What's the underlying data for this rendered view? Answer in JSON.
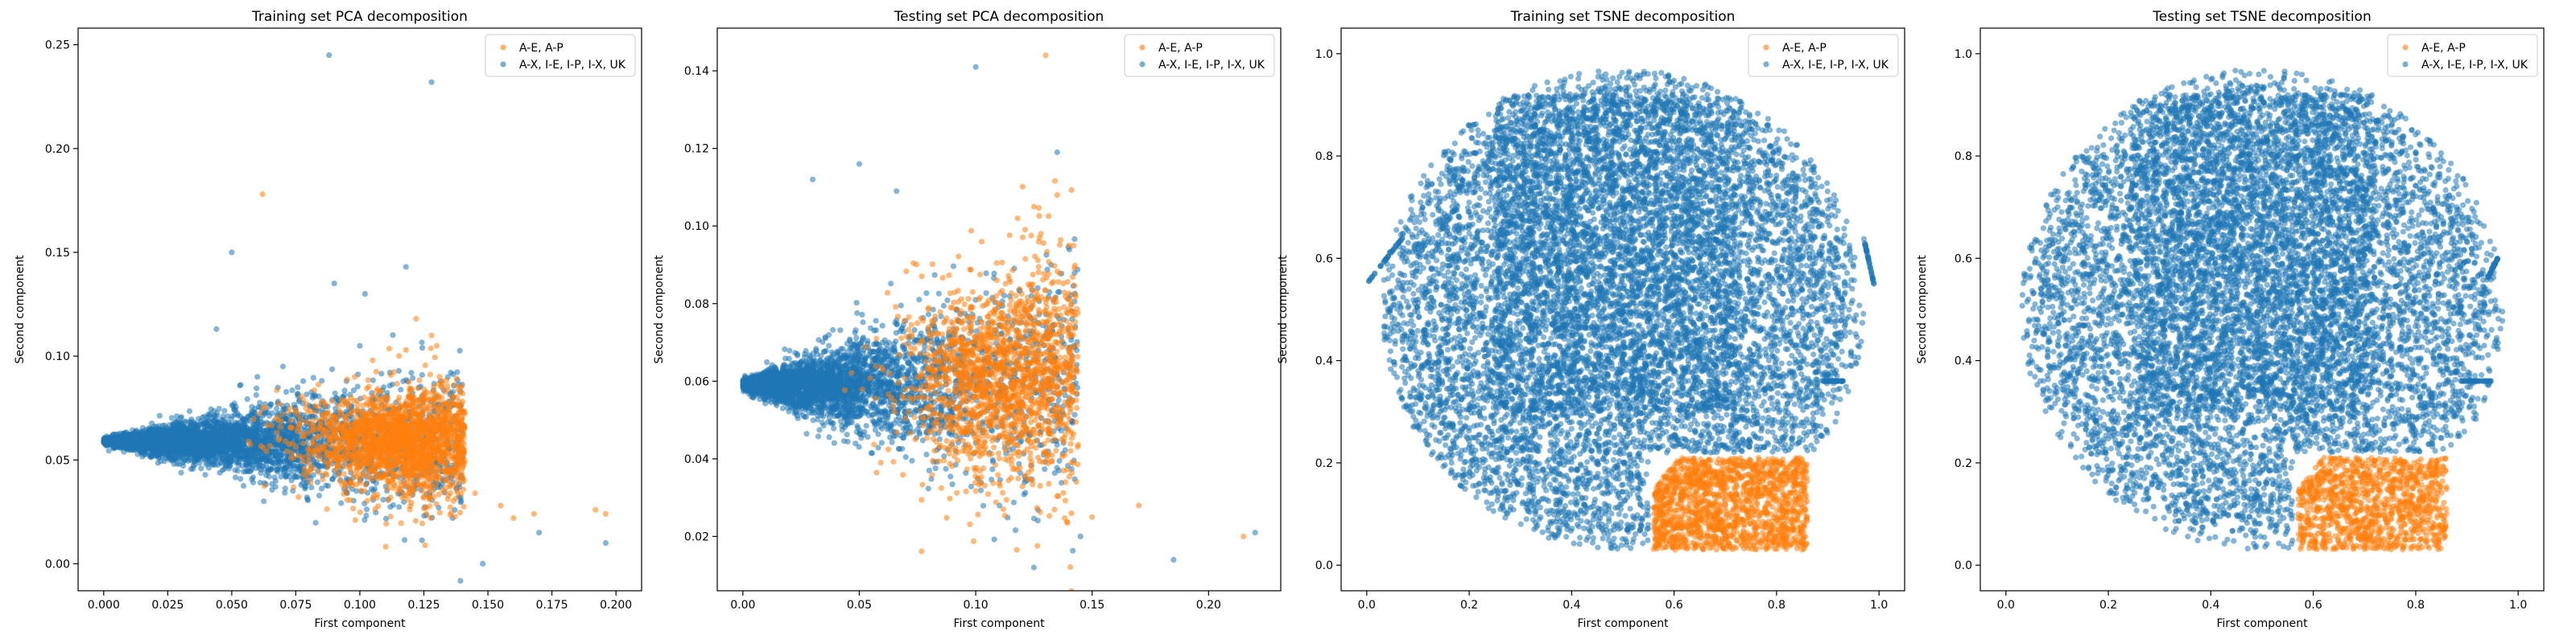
{
  "colors": {
    "orange": "#ff7f0e",
    "blue": "#1f77b4"
  },
  "chart_data": [
    {
      "type": "scatter",
      "title": "Training set PCA decomposition",
      "xlabel": "First component",
      "ylabel": "Second component",
      "xlim": [
        -0.01,
        0.21
      ],
      "ylim": [
        -0.013,
        0.258
      ],
      "xticks": [
        0.0,
        0.025,
        0.05,
        0.075,
        0.1,
        0.125,
        0.15,
        0.175,
        0.2
      ],
      "xtick_labels": [
        "0.000",
        "0.025",
        "0.050",
        "0.075",
        "0.100",
        "0.125",
        "0.150",
        "0.175",
        "0.200"
      ],
      "yticks": [
        0.0,
        0.05,
        0.1,
        0.15,
        0.2,
        0.25
      ],
      "ytick_labels": [
        "0.00",
        "0.05",
        "0.10",
        "0.15",
        "0.20",
        "0.25"
      ],
      "legend_position": "top-right",
      "series": [
        {
          "name": "A-E, A-P",
          "color": "#ff7f0e",
          "points": [
            [
              0.062,
              0.178
            ],
            [
              0.145,
              0.034
            ],
            [
              0.155,
              0.028
            ],
            [
              0.168,
              0.024
            ],
            [
              0.192,
              0.026
            ],
            [
              0.196,
              0.024
            ],
            [
              0.13,
              0.105
            ],
            [
              0.128,
              0.11
            ],
            [
              0.118,
              0.103
            ],
            [
              0.105,
              0.098
            ],
            [
              0.14,
              0.046
            ],
            [
              0.138,
              0.04
            ],
            [
              0.085,
              0.078
            ],
            [
              0.098,
              0.09
            ],
            [
              0.112,
              0.032
            ],
            [
              0.126,
              0.024
            ],
            [
              0.16,
              0.022
            ],
            [
              0.122,
              0.118
            ],
            [
              0.08,
              0.05
            ]
          ],
          "clusters": [
            {
              "cx": 0.11,
              "cy": 0.06,
              "sx": 0.017,
              "sy": 0.011,
              "n": 1400,
              "xmin": 0.055,
              "xmax": 0.141
            },
            {
              "cx": 0.125,
              "cy": 0.058,
              "sx": 0.01,
              "sy": 0.015,
              "n": 600,
              "xmin": 0.09,
              "xmax": 0.141
            }
          ]
        },
        {
          "name": "A-X, I-E, I-P, I-X, UK",
          "color": "#1f77b4",
          "points": [
            [
              0.088,
              0.245
            ],
            [
              0.128,
              0.232
            ],
            [
              0.05,
              0.15
            ],
            [
              0.118,
              0.143
            ],
            [
              0.09,
              0.135
            ],
            [
              0.102,
              0.13
            ],
            [
              0.044,
              0.113
            ],
            [
              0.196,
              0.01
            ],
            [
              0.148,
              0.0
            ],
            [
              0.17,
              0.015
            ],
            [
              0.1,
              0.105
            ],
            [
              0.07,
              0.095
            ],
            [
              0.06,
              0.09
            ]
          ],
          "wedge": {
            "x0": 0.0,
            "y0": 0.059,
            "xmax": 0.14,
            "slope_up": 0.26,
            "slope_down": 0.26,
            "n": 3000,
            "xmean": 0.045
          }
        }
      ]
    },
    {
      "type": "scatter",
      "title": "Testing set PCA decomposition",
      "xlabel": "First component",
      "ylabel": "Second component",
      "xlim": [
        -0.011,
        0.231
      ],
      "ylim": [
        0.006,
        0.151
      ],
      "xticks": [
        0.0,
        0.05,
        0.1,
        0.15,
        0.2
      ],
      "xtick_labels": [
        "0.00",
        "0.05",
        "0.10",
        "0.15",
        "0.20"
      ],
      "yticks": [
        0.02,
        0.04,
        0.06,
        0.08,
        0.1,
        0.12,
        0.14
      ],
      "ytick_labels": [
        "0.02",
        "0.04",
        "0.06",
        "0.08",
        "0.10",
        "0.12",
        "0.14"
      ],
      "legend_position": "top-right",
      "series": [
        {
          "name": "A-E, A-P",
          "color": "#ff7f0e",
          "points": [
            [
              0.13,
              0.144
            ],
            [
              0.17,
              0.028
            ],
            [
              0.215,
              0.02
            ],
            [
              0.135,
              0.108
            ],
            [
              0.125,
              0.105
            ],
            [
              0.118,
              0.102
            ],
            [
              0.14,
              0.095
            ],
            [
              0.128,
              0.098
            ],
            [
              0.15,
              0.025
            ]
          ],
          "clusters": [
            {
              "cx": 0.105,
              "cy": 0.06,
              "sx": 0.018,
              "sy": 0.012,
              "n": 1300,
              "xmin": 0.04,
              "xmax": 0.144
            },
            {
              "cx": 0.13,
              "cy": 0.062,
              "sx": 0.009,
              "sy": 0.016,
              "n": 400,
              "xmin": 0.09,
              "xmax": 0.144
            }
          ]
        },
        {
          "name": "A-X, I-E, I-P, I-X, UK",
          "color": "#1f77b4",
          "points": [
            [
              0.1,
              0.141
            ],
            [
              0.135,
              0.119
            ],
            [
              0.03,
              0.112
            ],
            [
              0.05,
              0.116
            ],
            [
              0.066,
              0.109
            ],
            [
              0.185,
              0.014
            ],
            [
              0.22,
              0.021
            ],
            [
              0.125,
              0.012
            ],
            [
              0.145,
              0.02
            ]
          ],
          "wedge": {
            "x0": 0.0,
            "y0": 0.059,
            "xmax": 0.144,
            "slope_up": 0.22,
            "slope_down": 0.22,
            "n": 2400,
            "xmean": 0.042
          }
        }
      ]
    },
    {
      "type": "scatter",
      "title": "Training set TSNE decomposition",
      "xlabel": "First component",
      "ylabel": "Second component",
      "xlim": [
        -0.05,
        1.05
      ],
      "ylim": [
        -0.05,
        1.05
      ],
      "xticks": [
        0.0,
        0.2,
        0.4,
        0.6,
        0.8,
        1.0
      ],
      "xtick_labels": [
        "0.0",
        "0.2",
        "0.4",
        "0.6",
        "0.8",
        "1.0"
      ],
      "yticks": [
        0.0,
        0.2,
        0.4,
        0.6,
        0.8,
        1.0
      ],
      "ytick_labels": [
        "0.0",
        "0.2",
        "0.4",
        "0.6",
        "0.8",
        "1.0"
      ],
      "legend_position": "top-right",
      "series": [
        {
          "name": "A-E, A-P",
          "color": "#ff7f0e",
          "region": {
            "xmin": 0.56,
            "xmax": 0.86,
            "ymin": 0.03,
            "ymax": 0.21,
            "n": 1500
          }
        },
        {
          "name": "A-X, I-E, I-P, I-X, UK",
          "color": "#1f77b4",
          "blob": {
            "cx": 0.5,
            "cy": 0.5,
            "r": 0.47,
            "n": 4500
          },
          "fill_rects": [
            {
              "xmin": 0.25,
              "xmax": 0.72,
              "ymin": 0.3,
              "ymax": 0.92
            }
          ],
          "notch": {
            "xmin": 0.55,
            "xmax": 0.88,
            "ymin": 0.0,
            "ymax": 0.22
          },
          "edge_arcs": [
            {
              "x0": 0.0,
              "y0": 0.55,
              "x1": 0.07,
              "y1": 0.64
            },
            {
              "x0": 0.97,
              "y0": 0.64,
              "x1": 0.99,
              "y1": 0.55
            },
            {
              "x0": 0.89,
              "y0": 0.36,
              "x1": 0.93,
              "y1": 0.36
            }
          ]
        }
      ]
    },
    {
      "type": "scatter",
      "title": "Testing set TSNE decomposition",
      "xlabel": "First component",
      "ylabel": "Second component",
      "xlim": [
        -0.05,
        1.05
      ],
      "ylim": [
        -0.05,
        1.05
      ],
      "xticks": [
        0.0,
        0.2,
        0.4,
        0.6,
        0.8,
        1.0
      ],
      "xtick_labels": [
        "0.0",
        "0.2",
        "0.4",
        "0.6",
        "0.8",
        "1.0"
      ],
      "yticks": [
        0.0,
        0.2,
        0.4,
        0.6,
        0.8,
        1.0
      ],
      "ytick_labels": [
        "0.0",
        "0.2",
        "0.4",
        "0.6",
        "0.8",
        "1.0"
      ],
      "legend_position": "top-right",
      "series": [
        {
          "name": "A-E, A-P",
          "color": "#ff7f0e",
          "region": {
            "xmin": 0.57,
            "xmax": 0.86,
            "ymin": 0.03,
            "ymax": 0.21,
            "n": 1100
          }
        },
        {
          "name": "A-X, I-E, I-P, I-X, UK",
          "color": "#1f77b4",
          "blob": {
            "cx": 0.5,
            "cy": 0.5,
            "r": 0.47,
            "n": 3800
          },
          "fill_rects": [
            {
              "xmin": 0.25,
              "xmax": 0.72,
              "ymin": 0.3,
              "ymax": 0.92
            }
          ],
          "notch": {
            "xmin": 0.56,
            "xmax": 0.88,
            "ymin": 0.0,
            "ymax": 0.22
          },
          "edge_arcs": [
            {
              "x0": 0.89,
              "y0": 0.36,
              "x1": 0.95,
              "y1": 0.36
            },
            {
              "x0": 0.94,
              "y0": 0.56,
              "x1": 0.96,
              "y1": 0.6
            }
          ]
        }
      ]
    }
  ]
}
